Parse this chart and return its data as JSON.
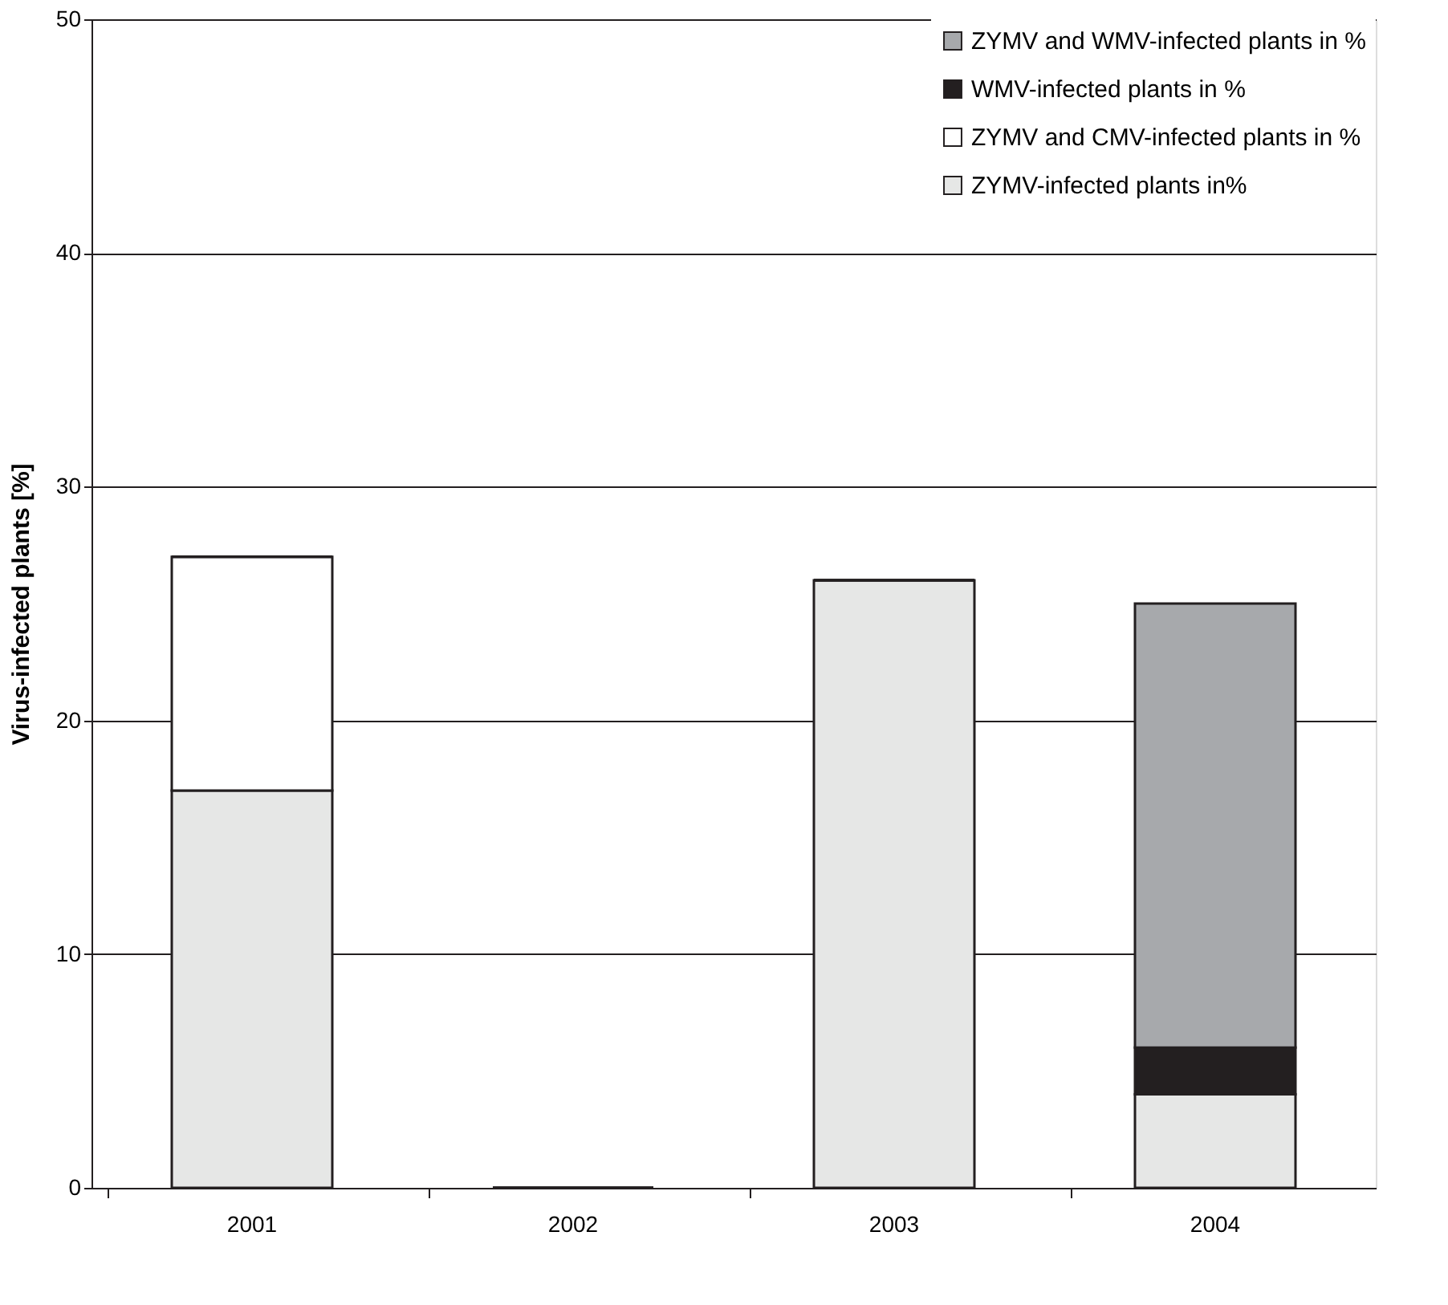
{
  "chart_data": {
    "type": "bar",
    "stacked": true,
    "ylabel": "Virus-infected plants [%]",
    "categories": [
      "2001",
      "2002",
      "2003",
      "2004"
    ],
    "series": [
      {
        "name": "ZYMV-infected plants in%",
        "color": "#e6e7e6",
        "values": [
          17,
          0,
          26,
          4
        ]
      },
      {
        "name": "ZYMV and CMV-infected plants in %",
        "color": "#ffffff",
        "values": [
          10,
          0,
          0,
          0
        ]
      },
      {
        "name": "WMV-infected plants in %",
        "color": "#231f20",
        "values": [
          0,
          0,
          0,
          2
        ]
      },
      {
        "name": "ZYMV and WMV-infected plants in %",
        "color": "#a7a9ac",
        "values": [
          0,
          0,
          0,
          19
        ]
      }
    ],
    "ylim": [
      0,
      50
    ],
    "yticks": [
      0,
      10,
      20,
      30,
      40,
      50
    ],
    "grid": "y",
    "legend": "top right"
  }
}
